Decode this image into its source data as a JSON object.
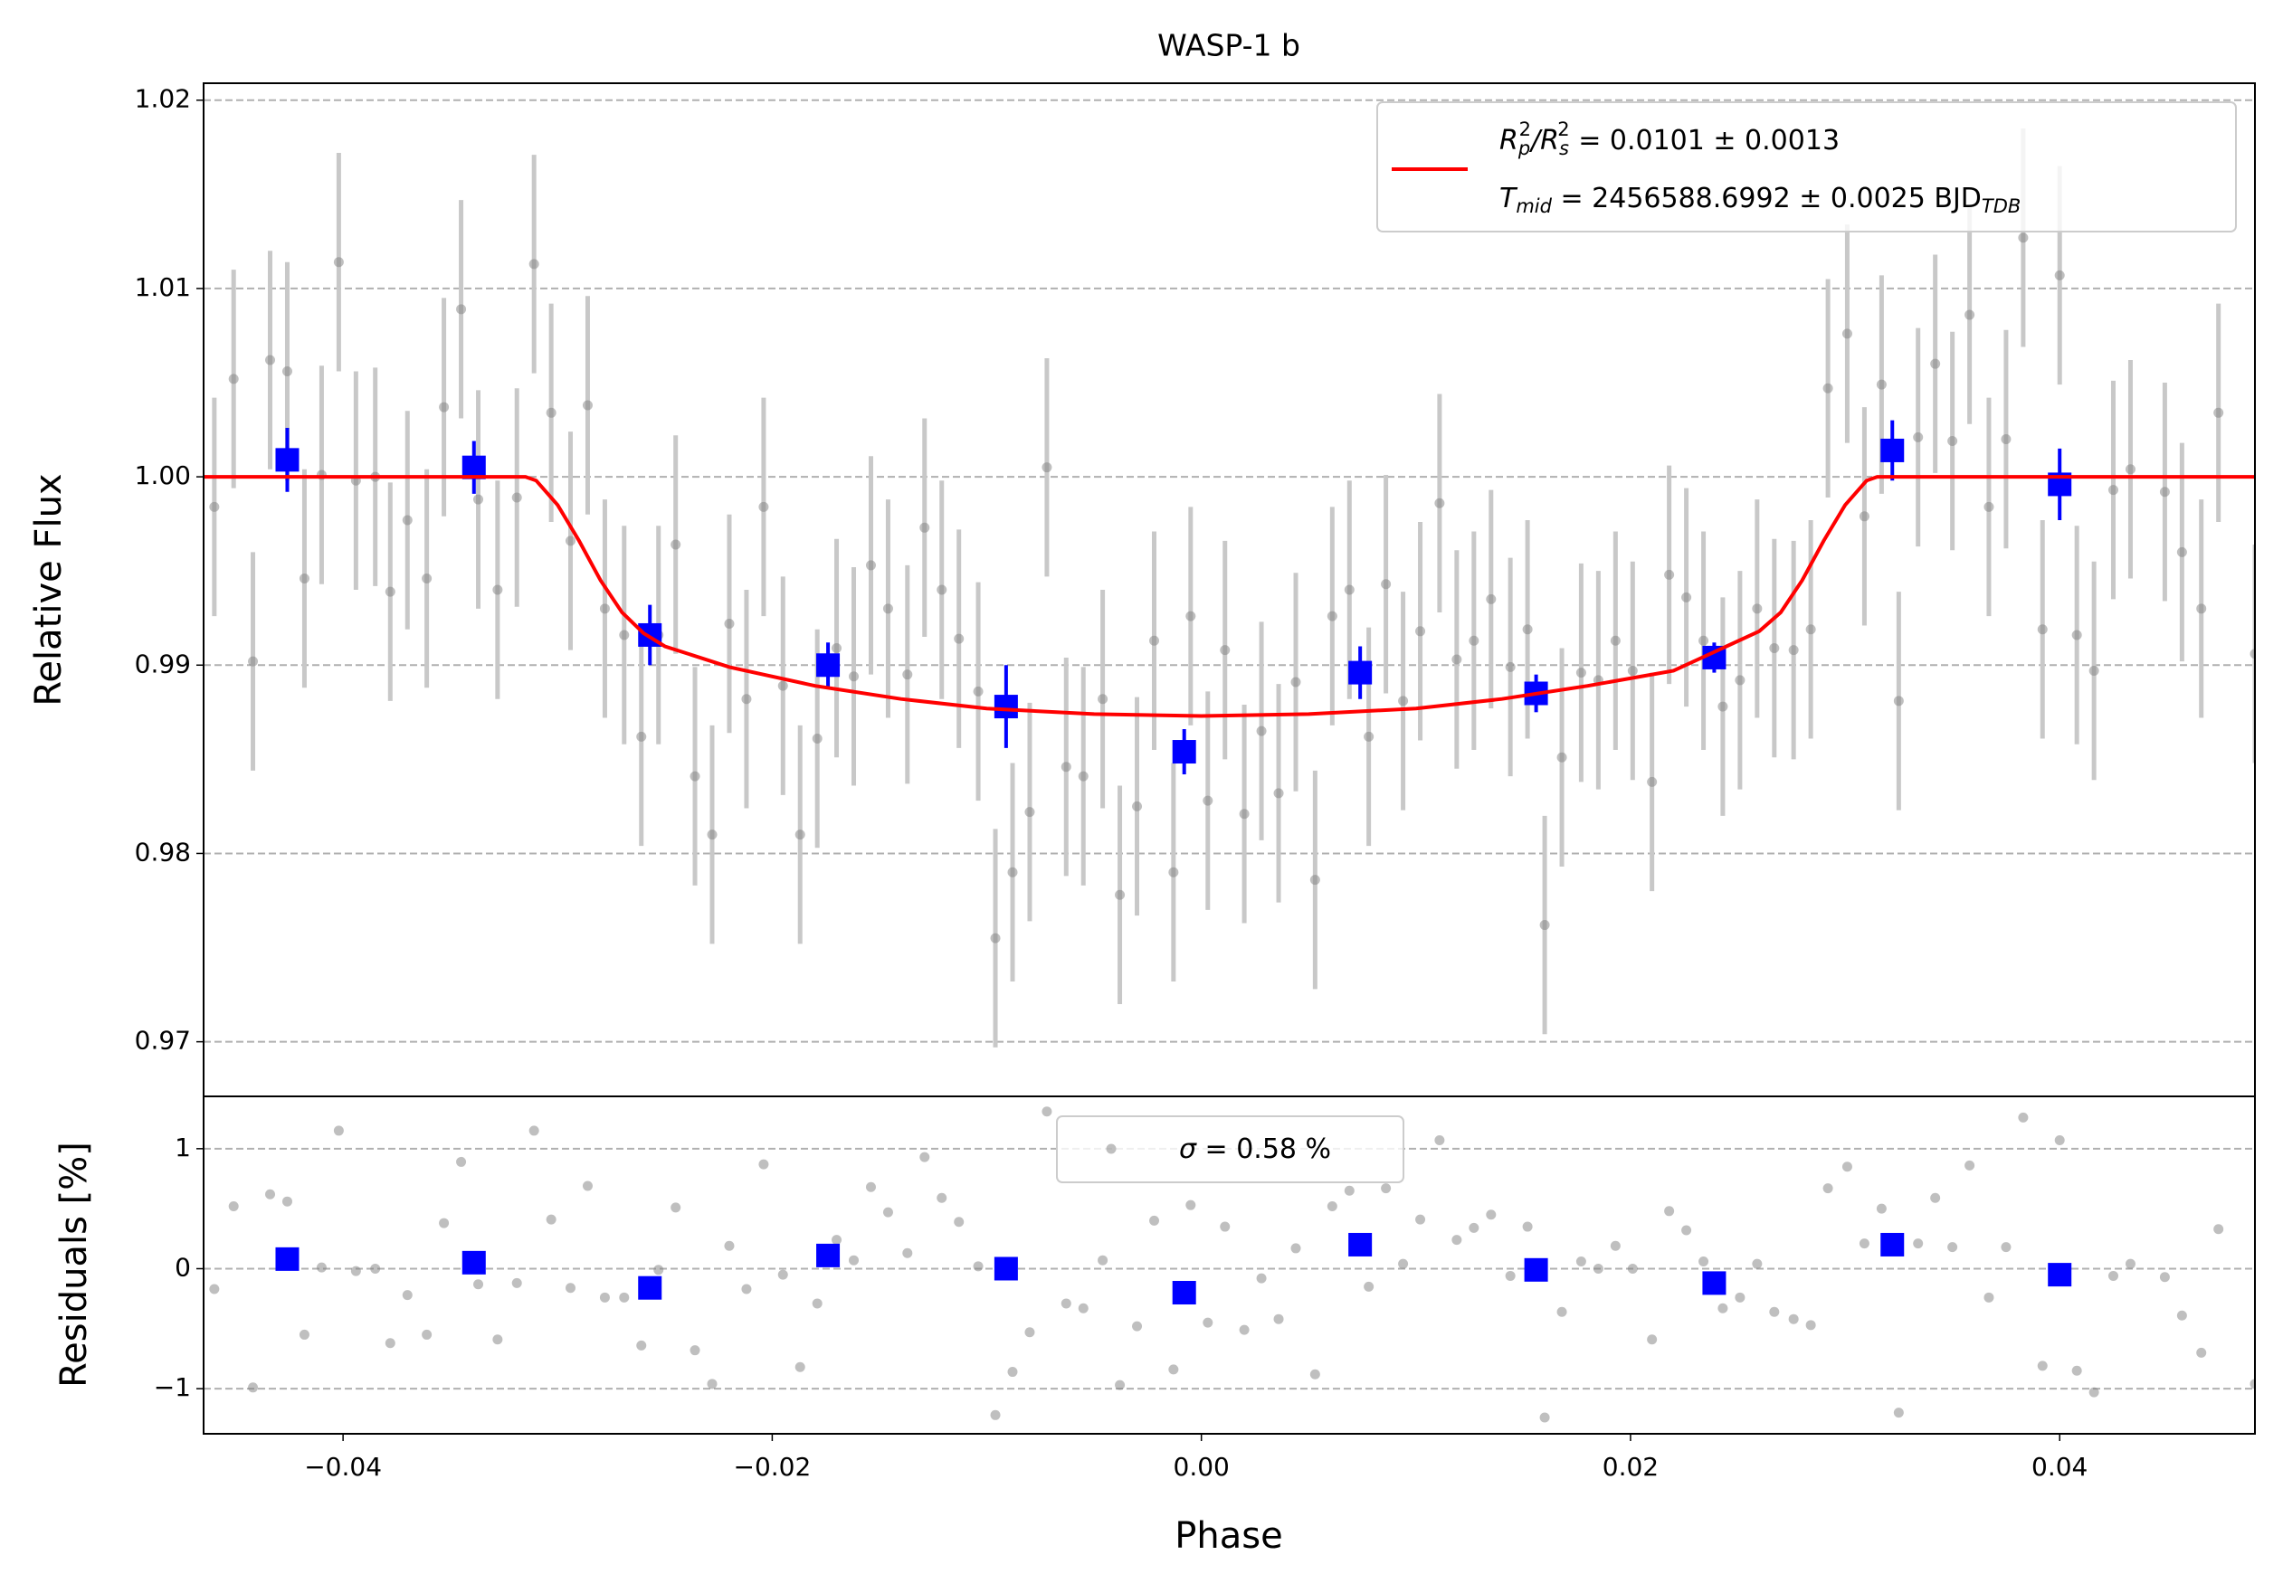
{
  "chart_data": [
    {
      "type": "scatter",
      "title": "WASP-1 b",
      "ylabel": "Relative Flux",
      "xlim": [
        -0.0465,
        0.0491
      ],
      "ylim": [
        0.9671,
        1.0209
      ],
      "yticks": [
        0.97,
        0.98,
        0.99,
        {
          "value": 1,
          "label": "1.00"
        },
        1.01,
        1.02
      ],
      "grid": true,
      "legend": "upper right",
      "series": [
        {
          "kind": "errorbar",
          "color": "#808080",
          "ecolor": "#c8c8c8",
          "yerr": 0.0058,
          "x": [
            -0.046,
            -0.0451,
            -0.0442,
            -0.0434,
            -0.0426,
            -0.0418,
            -0.041,
            -0.0402,
            -0.0394,
            -0.0385,
            -0.0378,
            -0.037,
            -0.0361,
            -0.0353,
            -0.0345,
            -0.0337,
            -0.0328,
            -0.0319,
            -0.0311,
            -0.0303,
            -0.0294,
            -0.0286,
            -0.0278,
            -0.0269,
            -0.0261,
            -0.0253,
            -0.0245,
            -0.0236,
            -0.0228,
            -0.022,
            -0.0212,
            -0.0204,
            -0.0195,
            -0.0187,
            -0.0179,
            -0.017,
            -0.0162,
            -0.0154,
            -0.0146,
            -0.0137,
            -0.0129,
            -0.0121,
            -0.0113,
            -0.0104,
            -0.0096,
            -0.0088,
            -0.008,
            -0.0072,
            -0.0063,
            -0.0055,
            -0.0046,
            -0.0038,
            -0.003,
            -0.0022,
            -0.0013,
            -0.0005,
            0.0003,
            0.0011,
            0.002,
            0.0028,
            0.0036,
            0.0044,
            0.0053,
            0.0061,
            0.0069,
            0.0078,
            0.0086,
            0.0094,
            0.0102,
            0.0111,
            0.0119,
            0.0127,
            0.0135,
            0.0144,
            0.0152,
            0.016,
            0.0168,
            0.0177,
            0.0185,
            0.0193,
            0.0201,
            0.021,
            0.0218,
            0.0226,
            0.0234,
            0.0243,
            0.0251,
            0.0259,
            0.0267,
            0.0276,
            0.0284,
            0.0292,
            0.0301,
            0.0309,
            0.0317,
            0.0325,
            0.0334,
            0.0342,
            0.035,
            0.0358,
            0.0367,
            0.0375,
            0.0383,
            0.0392,
            0.04,
            0.0408,
            0.0416,
            0.0425,
            0.0433,
            0.0449,
            0.0457,
            0.0466,
            0.0474,
            0.0491
          ],
          "values": [
            0.9984,
            1.0052,
            0.9902,
            1.0062,
            1.0056,
            0.9946,
            1.0001,
            1.0114,
            0.9998,
            1.0,
            0.9939,
            0.9977,
            0.9946,
            1.0037,
            1.0089,
            0.9988,
            0.994,
            0.9989,
            1.0113,
            1.0034,
            0.9966,
            1.0038,
            0.993,
            0.9916,
            0.9862,
            0.9916,
            0.9964,
            0.9841,
            0.981,
            0.9922,
            0.9882,
            0.9984,
            0.9889,
            0.981,
            0.9861,
            0.9909,
            0.9894,
            0.9953,
            0.993,
            0.9895,
            0.9973,
            0.994,
            0.9914,
            0.9886,
            0.9755,
            0.979,
            0.9822,
            1.0005,
            0.9846,
            0.9841,
            0.9882,
            0.9778,
            0.9825,
            0.9913,
            0.979,
            0.9926,
            0.9828,
            0.9908,
            0.9821,
            0.9865,
            0.9832,
            0.9891,
            0.9786,
            0.9926,
            0.994,
            0.9862,
            0.9943,
            0.9881,
            0.9918,
            0.9986,
            0.9903,
            0.9913,
            0.9935,
            0.9899,
            0.9919,
            0.9762,
            0.9851,
            0.9896,
            0.9892,
            0.9913,
            0.9897,
            0.9838,
            0.9948,
            0.9936,
            0.9913,
            0.9878,
            0.9892,
            0.993,
            0.9909,
            0.9908,
            0.9919,
            1.0047,
            1.0076,
            0.9979,
            1.0049,
            0.9881,
            1.0021,
            1.006,
            1.0019,
            1.0086,
            0.9984,
            1.002,
            1.0127,
            0.9919,
            1.0107,
            0.9916,
            0.9897,
            0.9993,
            1.0004,
            0.9992,
            0.996,
            0.993,
            1.0034,
            0.9906
          ]
        },
        {
          "kind": "errorbar",
          "color": "#0000ff",
          "ecolor": "#0000ff",
          "marker": "square",
          "x": [
            -0.0426,
            -0.0339,
            -0.0257,
            -0.0174,
            -0.0091,
            -0.0008,
            0.0074,
            0.0156,
            0.0239,
            0.0322,
            0.04
          ],
          "values": [
            1.0009,
            1.0005,
            0.9916,
            0.99,
            0.9878,
            0.9854,
            0.9896,
            0.9885,
            0.9904,
            1.0014,
            0.9996
          ],
          "errors": [
            0.0017,
            0.0014,
            0.0016,
            0.0012,
            0.0022,
            0.0012,
            0.0014,
            0.001,
            0.0008,
            0.0016,
            0.0019
          ]
        },
        {
          "kind": "line",
          "color": "#ff0000",
          "name": [
            [
              {
                "text": "R",
                "script": "italic"
              },
              {
                "text": "p",
                "script": "sub"
              },
              {
                "text": "2",
                "script": "sup"
              },
              {
                "text": "/",
                "script": "italic"
              },
              {
                "text": "R",
                "script": "italic"
              },
              {
                "text": "s",
                "script": "sub"
              },
              {
                "text": "2",
                "script": "sup"
              },
              {
                "text": " = 0.0101 ± 0.0013",
                "script": "normal"
              }
            ],
            [
              {
                "text": "T",
                "script": "italic"
              },
              {
                "text": "mid",
                "script": "sub"
              },
              {
                "text": " = 2456588.6992 ± 0.0025 BJD",
                "script": "normal"
              },
              {
                "text": "TDB",
                "script": "sub"
              }
            ]
          ],
          "x": [
            -0.0465,
            -0.0315,
            -0.031,
            -0.03,
            -0.029,
            -0.028,
            -0.027,
            -0.026,
            -0.025,
            -0.022,
            -0.018,
            -0.014,
            -0.01,
            -0.005,
            0,
            0.005,
            0.01,
            0.014,
            0.018,
            0.022,
            0.026,
            0.027,
            0.028,
            0.029,
            0.03,
            0.031,
            0.0315,
            0.0491
          ],
          "values": [
            1,
            1,
            0.9998,
            0.9985,
            0.9966,
            0.9945,
            0.9928,
            0.9917,
            0.991,
            0.9899,
            0.9889,
            0.9882,
            0.9877,
            0.9874,
            0.9873,
            0.9874,
            0.9877,
            0.9882,
            0.9889,
            0.9897,
            0.9918,
            0.9928,
            0.9945,
            0.9966,
            0.9985,
            0.9998,
            1,
            1
          ]
        }
      ]
    },
    {
      "type": "scatter",
      "ylabel": "Residuals [%]",
      "xlabel": "Phase",
      "xlim": [
        -0.0465,
        0.0491
      ],
      "ylim": [
        -1.376,
        1.436
      ],
      "xticks": [
        {
          "value": -0.04,
          "label": "−0.04"
        },
        {
          "value": -0.02,
          "label": "−0.02"
        },
        {
          "value": 0,
          "label": "0.00"
        },
        0.02,
        0.04
      ],
      "yticks": [
        {
          "value": -1,
          "label": "−1"
        },
        0,
        1
      ],
      "grid": true,
      "legend": "upper center",
      "series": [
        {
          "kind": "points",
          "color": "#808080",
          "name": [
            [
              {
                "text": "σ",
                "script": "italic"
              },
              {
                "text": " = 0.58 %",
                "script": "normal"
              }
            ]
          ],
          "x": [
            -0.046,
            -0.0451,
            -0.0442,
            -0.0434,
            -0.0426,
            -0.0418,
            -0.041,
            -0.0402,
            -0.0394,
            -0.0385,
            -0.0378,
            -0.037,
            -0.0361,
            -0.0353,
            -0.0345,
            -0.0337,
            -0.0328,
            -0.0319,
            -0.0311,
            -0.0303,
            -0.0294,
            -0.0286,
            -0.0278,
            -0.0269,
            -0.0261,
            -0.0253,
            -0.0245,
            -0.0236,
            -0.0228,
            -0.022,
            -0.0212,
            -0.0204,
            -0.0195,
            -0.0187,
            -0.0179,
            -0.017,
            -0.0162,
            -0.0154,
            -0.0146,
            -0.0137,
            -0.0129,
            -0.0121,
            -0.0113,
            -0.0104,
            -0.0096,
            -0.0088,
            -0.008,
            -0.0072,
            -0.0063,
            -0.0055,
            -0.0046,
            -0.0038,
            -0.003,
            -0.0022,
            -0.0013,
            -0.0005,
            0.0003,
            0.0011,
            0.002,
            0.0028,
            0.0036,
            0.0044,
            0.0053,
            0.0061,
            0.0069,
            0.0078,
            0.0086,
            0.0094,
            0.0102,
            0.0111,
            0.0119,
            0.0127,
            0.0135,
            0.0144,
            0.0152,
            0.016,
            0.0168,
            0.0177,
            0.0185,
            0.0193,
            0.0201,
            0.021,
            0.0218,
            0.0226,
            0.0234,
            0.0243,
            0.0251,
            0.0259,
            0.0267,
            0.0276,
            0.0284,
            0.0292,
            0.0301,
            0.0309,
            0.0317,
            0.0325,
            0.0334,
            0.0342,
            0.035,
            0.0358,
            0.0367,
            0.0375,
            0.0383,
            0.0392,
            0.04,
            0.0408,
            0.0416,
            0.0425,
            0.0433,
            0.0449,
            0.0457,
            0.0466,
            0.0474,
            0.0491
          ],
          "values": [
            -0.17,
            0.52,
            -0.99,
            0.62,
            0.56,
            -0.55,
            0.01,
            1.15,
            -0.02,
            0,
            -0.62,
            -0.22,
            -0.55,
            0.38,
            0.89,
            -0.13,
            -0.59,
            -0.12,
            1.15,
            0.41,
            -0.16,
            0.69,
            -0.24,
            -0.24,
            -0.64,
            -0.01,
            0.51,
            -0.68,
            -0.96,
            0.19,
            -0.17,
            0.87,
            -0.05,
            -0.82,
            -0.29,
            0.24,
            0.07,
            0.68,
            0.47,
            0.13,
            0.93,
            0.59,
            0.39,
            0.02,
            -1.22,
            -0.86,
            -0.53,
            1.31,
            -0.29,
            -0.33,
            0.07,
            -0.97,
            -0.48,
            0.4,
            -0.84,
            0.53,
            -0.45,
            0.35,
            -0.51,
            -0.08,
            -0.42,
            0.17,
            -0.88,
            0.52,
            0.65,
            -0.15,
            0.67,
            0.04,
            0.41,
            1.07,
            0.24,
            0.34,
            0.45,
            -0.06,
            0.35,
            -1.24,
            -0.36,
            0.06,
            0,
            0.19,
            0,
            -0.59,
            0.48,
            0.32,
            0.06,
            -0.33,
            -0.24,
            0.04,
            -0.36,
            -0.42,
            -0.47,
            0.67,
            0.85,
            0.21,
            0.5,
            -1.2,
            0.21,
            0.59,
            0.18,
            0.86,
            -0.24,
            0.18,
            1.26,
            -0.81,
            1.07,
            -0.85,
            -1.03,
            -0.06,
            0.04,
            -0.07,
            -0.39,
            -0.7,
            0.33,
            -0.96
          ]
        },
        {
          "kind": "points",
          "color": "#0000ff",
          "marker": "square",
          "x": [
            -0.0426,
            -0.0339,
            -0.0257,
            -0.0174,
            -0.0091,
            -0.0008,
            0.0074,
            0.0156,
            0.0239,
            0.0322,
            0.04
          ],
          "values": [
            0.08,
            0.05,
            -0.16,
            0.11,
            0,
            -0.2,
            0.2,
            -0.01,
            -0.12,
            0.2,
            -0.05
          ]
        }
      ]
    }
  ]
}
